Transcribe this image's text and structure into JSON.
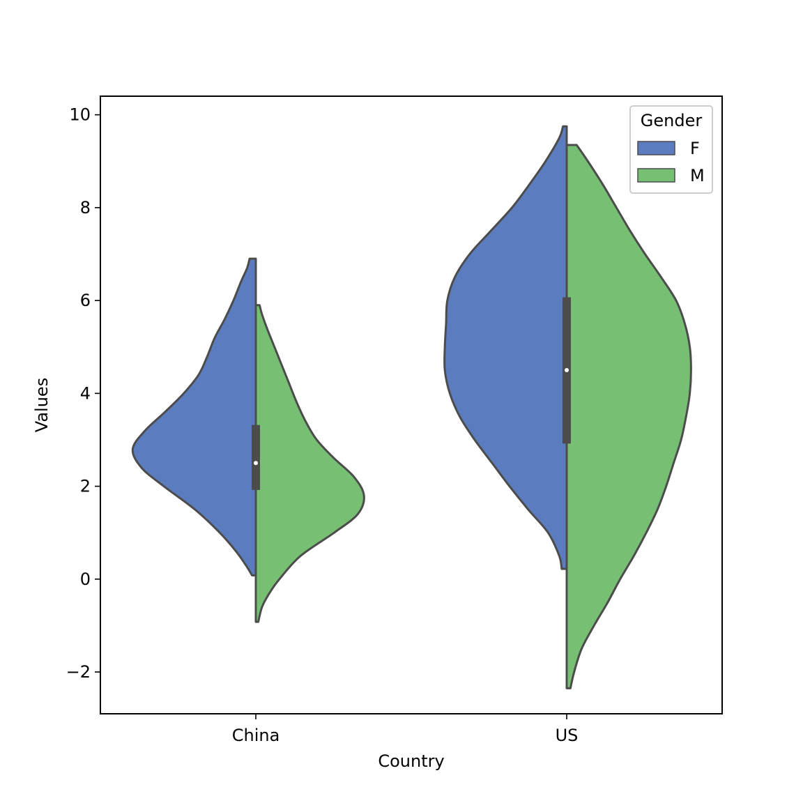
{
  "chart_data": {
    "type": "violin",
    "split": true,
    "xlabel": "Country",
    "ylabel": "Values",
    "categories": [
      "China",
      "US"
    ],
    "ylim": [
      -2.9,
      10.4
    ],
    "yticks": [
      -2,
      0,
      2,
      4,
      6,
      8,
      10
    ],
    "ytick_labels": [
      "−2",
      "0",
      "2",
      "4",
      "6",
      "8",
      "10"
    ],
    "grid": false,
    "legend": {
      "title": "Gender",
      "placement": "top-right",
      "entries": [
        {
          "label": "F",
          "color": "#5b7dbf"
        },
        {
          "label": "M",
          "color": "#77bf72"
        }
      ]
    },
    "series": [
      {
        "name": "F",
        "color": "#5b7dbf",
        "violins": [
          {
            "category": "China",
            "range": [
              0.08,
              6.9
            ],
            "density_profile": [
              [
                0.08,
                0.03
              ],
              [
                0.3,
                0.08
              ],
              [
                0.6,
                0.16
              ],
              [
                1.0,
                0.29
              ],
              [
                1.5,
                0.49
              ],
              [
                2.0,
                0.74
              ],
              [
                2.4,
                0.92
              ],
              [
                2.8,
                0.99
              ],
              [
                3.2,
                0.89
              ],
              [
                3.6,
                0.73
              ],
              [
                4.0,
                0.58
              ],
              [
                4.4,
                0.46
              ],
              [
                4.8,
                0.39
              ],
              [
                5.2,
                0.33
              ],
              [
                5.6,
                0.25
              ],
              [
                6.0,
                0.18
              ],
              [
                6.4,
                0.12
              ],
              [
                6.7,
                0.07
              ],
              [
                6.9,
                0.05
              ]
            ]
          },
          {
            "category": "US",
            "range": [
              0.22,
              9.75
            ],
            "density_profile": [
              [
                0.22,
                0.04
              ],
              [
                0.5,
                0.06
              ],
              [
                1.0,
                0.15
              ],
              [
                1.5,
                0.31
              ],
              [
                2.0,
                0.46
              ],
              [
                2.5,
                0.6
              ],
              [
                3.0,
                0.74
              ],
              [
                3.5,
                0.86
              ],
              [
                4.0,
                0.94
              ],
              [
                4.5,
                0.98
              ],
              [
                5.0,
                0.98
              ],
              [
                5.5,
                0.97
              ],
              [
                6.0,
                0.96
              ],
              [
                6.5,
                0.9
              ],
              [
                7.0,
                0.78
              ],
              [
                7.5,
                0.61
              ],
              [
                8.0,
                0.44
              ],
              [
                8.5,
                0.3
              ],
              [
                9.0,
                0.17
              ],
              [
                9.5,
                0.06
              ],
              [
                9.75,
                0.03
              ]
            ]
          }
        ]
      },
      {
        "name": "M",
        "color": "#77bf72",
        "violins": [
          {
            "category": "China",
            "range": [
              -0.92,
              5.9
            ],
            "density_profile": [
              [
                -0.92,
                0.02
              ],
              [
                -0.6,
                0.05
              ],
              [
                -0.3,
                0.11
              ],
              [
                0.0,
                0.19
              ],
              [
                0.5,
                0.36
              ],
              [
                1.0,
                0.63
              ],
              [
                1.4,
                0.82
              ],
              [
                1.8,
                0.87
              ],
              [
                2.2,
                0.79
              ],
              [
                2.6,
                0.63
              ],
              [
                3.0,
                0.49
              ],
              [
                3.4,
                0.4
              ],
              [
                3.8,
                0.33
              ],
              [
                4.2,
                0.27
              ],
              [
                4.6,
                0.21
              ],
              [
                5.0,
                0.15
              ],
              [
                5.4,
                0.09
              ],
              [
                5.7,
                0.05
              ],
              [
                5.9,
                0.03
              ]
            ]
          },
          {
            "category": "US",
            "range": [
              -2.35,
              9.35
            ],
            "density_profile": [
              [
                -2.35,
                0.03
              ],
              [
                -2.0,
                0.06
              ],
              [
                -1.5,
                0.12
              ],
              [
                -1.0,
                0.22
              ],
              [
                -0.5,
                0.33
              ],
              [
                0.0,
                0.43
              ],
              [
                0.5,
                0.54
              ],
              [
                1.0,
                0.64
              ],
              [
                1.5,
                0.73
              ],
              [
                2.0,
                0.8
              ],
              [
                2.5,
                0.86
              ],
              [
                3.0,
                0.92
              ],
              [
                3.5,
                0.96
              ],
              [
                4.0,
                0.99
              ],
              [
                4.5,
                1.0
              ],
              [
                5.0,
                0.99
              ],
              [
                5.5,
                0.95
              ],
              [
                6.0,
                0.88
              ],
              [
                6.5,
                0.76
              ],
              [
                7.0,
                0.63
              ],
              [
                7.5,
                0.51
              ],
              [
                8.0,
                0.4
              ],
              [
                8.5,
                0.29
              ],
              [
                9.0,
                0.17
              ],
              [
                9.35,
                0.08
              ]
            ]
          }
        ]
      }
    ],
    "box": [
      {
        "category": "China",
        "q1": 1.92,
        "median": 2.5,
        "q3": 3.32
      },
      {
        "category": "US",
        "q1": 2.92,
        "median": 4.5,
        "q3": 6.07
      }
    ],
    "outline_color": "#4c4c4c"
  }
}
